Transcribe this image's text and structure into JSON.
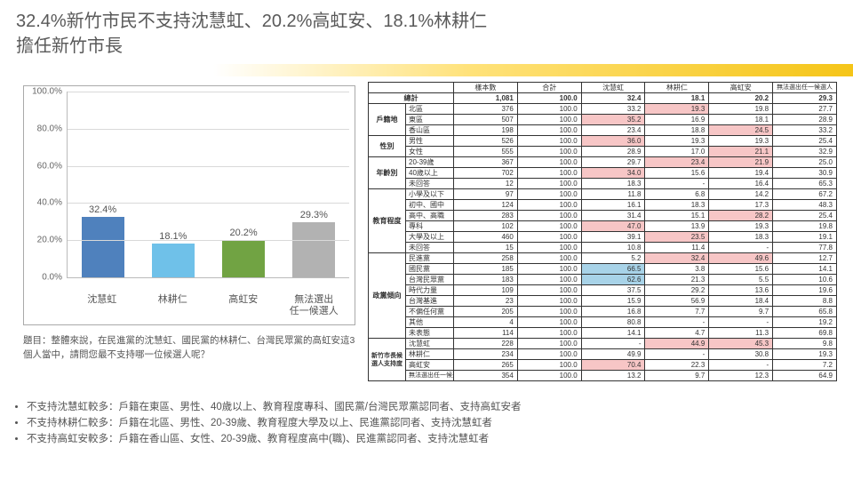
{
  "title_line1": "32.4%新竹市民不支持沈慧虹、20.2%高虹安、18.1%林耕仁",
  "title_line2": "擔任新竹市長",
  "chart": {
    "type": "bar",
    "ymax": 100,
    "ytick_step": 20,
    "ytick_suffix": "%",
    "grid_color": "#d9d9d9",
    "border_color": "#aaaaaa",
    "label_fontsize": 11,
    "bars": [
      {
        "category": "沈慧虹",
        "value": 32.4,
        "label": "32.4%",
        "color": "#4f81bd"
      },
      {
        "category": "林耕仁",
        "value": 18.1,
        "label": "18.1%",
        "color": "#6fc1e9"
      },
      {
        "category": "高虹安",
        "value": 20.2,
        "label": "20.2%",
        "color": "#71a343"
      },
      {
        "category": "無法選出\n任一候選人",
        "value": 29.3,
        "label": "29.3%",
        "color": "#b2b2b2"
      }
    ]
  },
  "question": "題目：整體來說，在民進黨的沈慧虹、國民黨的林耕仁、台灣民眾黨的高虹安這3個人當中，請問您最不支持哪一位候選人呢？",
  "table": {
    "columns": [
      "樣本數",
      "合計",
      "沈慧虹",
      "林耕仁",
      "高虹安",
      "無法選出任一候選人"
    ],
    "total_label": "總計",
    "total_row": [
      "1,081",
      "100.0",
      "32.4",
      "18.1",
      "20.2",
      "29.3"
    ],
    "highlight_colors": {
      "pink": "#f7c6c6",
      "blue": "#a8d3e8"
    },
    "groups": [
      {
        "name": "戶籍地",
        "rows": [
          {
            "label": "北區",
            "cells": [
              "376",
              "100.0",
              "33.2",
              "19.3",
              "19.8",
              "27.7"
            ],
            "hl": {
              "3": "pink"
            }
          },
          {
            "label": "東區",
            "cells": [
              "507",
              "100.0",
              "35.2",
              "16.9",
              "18.1",
              "28.9"
            ],
            "hl": {
              "2": "pink"
            }
          },
          {
            "label": "香山區",
            "cells": [
              "198",
              "100.0",
              "23.4",
              "18.8",
              "24.5",
              "33.2"
            ],
            "hl": {
              "4": "pink"
            }
          }
        ]
      },
      {
        "name": "性別",
        "rows": [
          {
            "label": "男性",
            "cells": [
              "526",
              "100.0",
              "36.0",
              "19.3",
              "19.3",
              "25.4"
            ],
            "hl": {
              "2": "pink"
            }
          },
          {
            "label": "女性",
            "cells": [
              "555",
              "100.0",
              "28.9",
              "17.0",
              "21.1",
              "32.9"
            ],
            "hl": {
              "4": "pink"
            }
          }
        ]
      },
      {
        "name": "年齡別",
        "rows": [
          {
            "label": "20-39歲",
            "cells": [
              "367",
              "100.0",
              "29.7",
              "23.4",
              "21.9",
              "25.0"
            ],
            "hl": {
              "3": "pink",
              "4": "pink"
            }
          },
          {
            "label": "40歲以上",
            "cells": [
              "702",
              "100.0",
              "34.0",
              "15.6",
              "19.4",
              "30.9"
            ],
            "hl": {
              "2": "pink"
            }
          },
          {
            "label": "未回答",
            "cells": [
              "12",
              "100.0",
              "18.3",
              "-",
              "16.4",
              "65.3"
            ]
          }
        ]
      },
      {
        "name": "教育程度",
        "rows": [
          {
            "label": "小學及以下",
            "cells": [
              "97",
              "100.0",
              "11.8",
              "6.8",
              "14.2",
              "67.2"
            ]
          },
          {
            "label": "初中、國中",
            "cells": [
              "124",
              "100.0",
              "16.1",
              "18.3",
              "17.3",
              "48.3"
            ]
          },
          {
            "label": "高中、高職",
            "cells": [
              "283",
              "100.0",
              "31.4",
              "15.1",
              "28.2",
              "25.4"
            ],
            "hl": {
              "4": "pink"
            }
          },
          {
            "label": "專科",
            "cells": [
              "102",
              "100.0",
              "47.0",
              "13.9",
              "19.3",
              "19.8"
            ],
            "hl": {
              "2": "pink"
            }
          },
          {
            "label": "大學及以上",
            "cells": [
              "460",
              "100.0",
              "39.1",
              "23.5",
              "18.3",
              "19.1"
            ],
            "hl": {
              "3": "pink"
            }
          },
          {
            "label": "未回答",
            "cells": [
              "15",
              "100.0",
              "10.8",
              "11.4",
              "-",
              "77.8"
            ]
          }
        ]
      },
      {
        "name": "政黨傾向",
        "rows": [
          {
            "label": "民進黨",
            "cells": [
              "258",
              "100.0",
              "5.2",
              "32.4",
              "49.6",
              "12.7"
            ],
            "hl": {
              "3": "pink",
              "4": "pink"
            }
          },
          {
            "label": "國民黨",
            "cells": [
              "185",
              "100.0",
              "66.5",
              "3.8",
              "15.6",
              "14.1"
            ],
            "hl": {
              "2": "blue"
            }
          },
          {
            "label": "台灣民眾黨",
            "cells": [
              "183",
              "100.0",
              "62.6",
              "21.3",
              "5.5",
              "10.6"
            ],
            "hl": {
              "2": "blue"
            }
          },
          {
            "label": "時代力量",
            "cells": [
              "109",
              "100.0",
              "37.5",
              "29.2",
              "13.6",
              "19.6"
            ]
          },
          {
            "label": "台灣基進",
            "cells": [
              "23",
              "100.0",
              "15.9",
              "56.9",
              "18.4",
              "8.8"
            ]
          },
          {
            "label": "不偏任何黨",
            "cells": [
              "205",
              "100.0",
              "16.8",
              "7.7",
              "9.7",
              "65.8"
            ]
          },
          {
            "label": "其他",
            "cells": [
              "4",
              "100.0",
              "80.8",
              "-",
              "-",
              "19.2"
            ]
          },
          {
            "label": "未表態",
            "cells": [
              "114",
              "100.0",
              "14.1",
              "4.7",
              "11.3",
              "69.8"
            ]
          }
        ]
      },
      {
        "name": "新竹市長候選人支持度",
        "rows": [
          {
            "label": "沈慧虹",
            "cells": [
              "228",
              "100.0",
              "-",
              "44.9",
              "45.3",
              "9.8"
            ],
            "hl": {
              "3": "pink",
              "4": "pink"
            }
          },
          {
            "label": "林耕仁",
            "cells": [
              "234",
              "100.0",
              "49.9",
              "-",
              "30.8",
              "19.3"
            ]
          },
          {
            "label": "高虹安",
            "cells": [
              "265",
              "100.0",
              "70.4",
              "22.3",
              "-",
              "7.2"
            ],
            "hl": {
              "2": "pink"
            }
          },
          {
            "label": "無法選出任一候選人",
            "cells": [
              "354",
              "100.0",
              "13.2",
              "9.7",
              "12.3",
              "64.9"
            ]
          }
        ]
      }
    ]
  },
  "bullets": [
    "不支持沈慧虹較多：戶籍在東區、男性、40歲以上、教育程度專科、國民黨/台灣民眾黨認同者、支持高虹安者",
    "不支持林耕仁較多：戶籍在北區、男性、20-39歲、教育程度大學及以上、民進黨認同者、支持沈慧虹者",
    "不支持高虹安較多：戶籍在香山區、女性、20-39歲、教育程度高中(職)、民進黨認同者、支持沈慧虹者"
  ]
}
